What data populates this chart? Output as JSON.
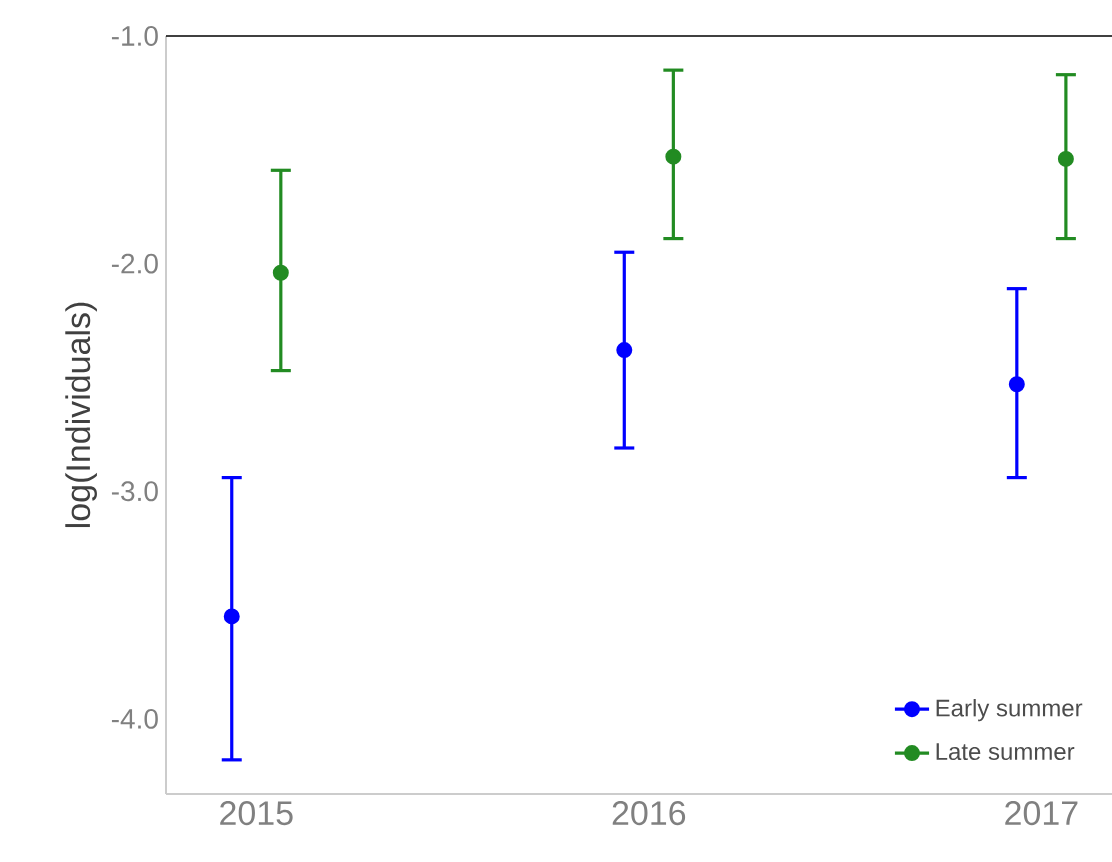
{
  "chart_data": {
    "type": "scatter",
    "ylabel": "log(Individuals)",
    "categories": [
      "2015",
      "2016",
      "2017"
    ],
    "series": [
      {
        "name": "Early summer",
        "color": "#0000ff",
        "values": [
          -3.55,
          -2.38,
          -2.53
        ],
        "errors": [
          [
            -4.18,
            -2.94
          ],
          [
            -2.81,
            -1.95
          ],
          [
            -2.94,
            -2.11
          ]
        ]
      },
      {
        "name": "Late summer",
        "color": "#228b22",
        "values": [
          -2.04,
          -1.53,
          -1.54
        ],
        "errors": [
          [
            -2.47,
            -1.59
          ],
          [
            -1.89,
            -1.15
          ],
          [
            -1.89,
            -1.17
          ]
        ]
      }
    ],
    "ylim": [
      -4.33,
      -1.0
    ],
    "yticks": [
      {
        "value": -4,
        "label": "-4.0"
      },
      {
        "value": -3,
        "label": "-3.0"
      },
      {
        "value": -2,
        "label": "-2.0"
      },
      {
        "value": -1,
        "label": "-1.0"
      }
    ],
    "marker": "circle",
    "legend": "bottom right",
    "grid": false
  }
}
